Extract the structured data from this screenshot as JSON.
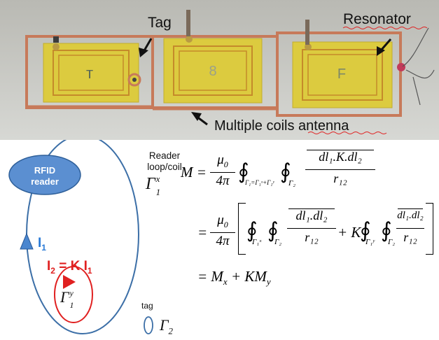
{
  "photo": {
    "tag_label": "Tag",
    "resonator_label": "Resonator",
    "antenna_label": "Multiple coils antenna",
    "pcb_markings": [
      "т",
      "8",
      "F"
    ]
  },
  "diagram": {
    "rfid_reader_line1": "RFID",
    "rfid_reader_line2": "reader",
    "reader_loop_line1": "Reader",
    "reader_loop_line2": "loop/coil",
    "gamma_1x_base": "Γ",
    "gamma_1x_sub": "1",
    "gamma_1x_sup": "x",
    "i1_label": "I",
    "i1_sub": "1",
    "i2_label": "I",
    "i2_sub": "2",
    "i2_rhs": " = K I",
    "i2_rhs_sub": "1",
    "gamma_1y_base": "Γ",
    "gamma_1y_sub": "1",
    "gamma_1y_sup": "y",
    "tag_label": "tag",
    "gamma_2_base": "Γ",
    "gamma_2_sub": "2"
  },
  "equations": {
    "line1_lhs": "M =",
    "mu0": "μ",
    "mu0_sub": "0",
    "four_pi": "4π",
    "oint": "∮",
    "gamma1_eq": "Γ₁=Γ₁ˣ+Γ₁ʸ",
    "gamma2": "Γ₂",
    "num1": "dl₁.K.dl₂",
    "r12": "r₁₂",
    "eq_sign": "=",
    "gamma1x": "Γ₁ˣ",
    "gamma1y": "Γ₁ʸ",
    "num2": "dl₁.dl₂",
    "plus_k": "+ K",
    "line3": "= M",
    "line3_x": "x",
    "line3_plus": " + KM",
    "line3_y": "y"
  },
  "colors": {
    "loop_blue": "#3c6fa7",
    "reader_fill": "#5b8fd1",
    "red": "#e02020",
    "i1_blue": "#2a7ad6",
    "copper": "#c77a5a",
    "pcb_yellow": "#dccb3f"
  }
}
